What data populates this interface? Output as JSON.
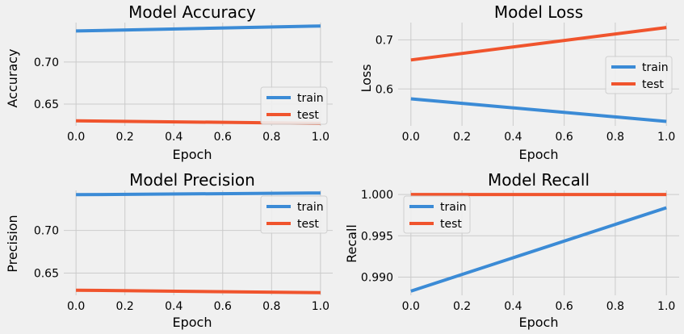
{
  "colors": {
    "background": "#f0f0f0",
    "train": "#3b8bd6",
    "test": "#f0542d",
    "grid": "#cbcbcb"
  },
  "chart_data": [
    {
      "type": "line",
      "title": "Model Accuracy",
      "xlabel": "Epoch",
      "ylabel": "Accuracy",
      "x": [
        0.0,
        1.0
      ],
      "xlim": [
        -0.05,
        1.05
      ],
      "ylim": [
        0.624,
        0.747
      ],
      "xticks": [
        0.0,
        0.2,
        0.4,
        0.6,
        0.8,
        1.0
      ],
      "xtick_labels": [
        "0.0",
        "0.2",
        "0.4",
        "0.6",
        "0.8",
        "1.0"
      ],
      "yticks": [
        0.65,
        0.7
      ],
      "ytick_labels": [
        "0.65",
        "0.70"
      ],
      "grid": true,
      "legend": "lower right",
      "series": [
        {
          "name": "train",
          "color": "#3b8bd6",
          "values": [
            0.737,
            0.743
          ]
        },
        {
          "name": "test",
          "color": "#f0542d",
          "values": [
            0.63,
            0.627
          ]
        }
      ]
    },
    {
      "type": "line",
      "title": "Model Loss",
      "xlabel": "Epoch",
      "ylabel": "Loss",
      "x": [
        0.0,
        1.0
      ],
      "xlim": [
        -0.05,
        1.05
      ],
      "ylim": [
        0.525,
        0.735
      ],
      "xticks": [
        0.0,
        0.2,
        0.4,
        0.6,
        0.8,
        1.0
      ],
      "xtick_labels": [
        "0.0",
        "0.2",
        "0.4",
        "0.6",
        "0.8",
        "1.0"
      ],
      "yticks": [
        0.6,
        0.7
      ],
      "ytick_labels": [
        "0.6",
        "0.7"
      ],
      "grid": true,
      "legend": "center right",
      "series": [
        {
          "name": "train",
          "color": "#3b8bd6",
          "values": [
            0.58,
            0.534
          ]
        },
        {
          "name": "test",
          "color": "#f0542d",
          "values": [
            0.659,
            0.725
          ]
        }
      ]
    },
    {
      "type": "line",
      "title": "Model Precision",
      "xlabel": "Epoch",
      "ylabel": "Precision",
      "x": [
        0.0,
        1.0
      ],
      "xlim": [
        -0.05,
        1.05
      ],
      "ylim": [
        0.624,
        0.747
      ],
      "xticks": [
        0.0,
        0.2,
        0.4,
        0.6,
        0.8,
        1.0
      ],
      "xtick_labels": [
        "0.0",
        "0.2",
        "0.4",
        "0.6",
        "0.8",
        "1.0"
      ],
      "yticks": [
        0.65,
        0.7
      ],
      "ytick_labels": [
        "0.65",
        "0.70"
      ],
      "grid": true,
      "legend": "upper right",
      "series": [
        {
          "name": "train",
          "color": "#3b8bd6",
          "values": [
            0.742,
            0.744
          ]
        },
        {
          "name": "test",
          "color": "#f0542d",
          "values": [
            0.63,
            0.627
          ]
        }
      ]
    },
    {
      "type": "line",
      "title": "Model Recall",
      "xlabel": "Epoch",
      "ylabel": "Recall",
      "x": [
        0.0,
        1.0
      ],
      "xlim": [
        -0.05,
        1.05
      ],
      "ylim": [
        0.9878,
        1.0005
      ],
      "xticks": [
        0.0,
        0.2,
        0.4,
        0.6,
        0.8,
        1.0
      ],
      "xtick_labels": [
        "0.0",
        "0.2",
        "0.4",
        "0.6",
        "0.8",
        "1.0"
      ],
      "yticks": [
        0.99,
        0.995,
        1.0
      ],
      "ytick_labels": [
        "0.990",
        "0.995",
        "1.000"
      ],
      "grid": true,
      "legend": "upper left",
      "series": [
        {
          "name": "train",
          "color": "#3b8bd6",
          "values": [
            0.9883,
            0.9984
          ]
        },
        {
          "name": "test",
          "color": "#f0542d",
          "values": [
            1.0,
            1.0
          ]
        }
      ]
    }
  ]
}
